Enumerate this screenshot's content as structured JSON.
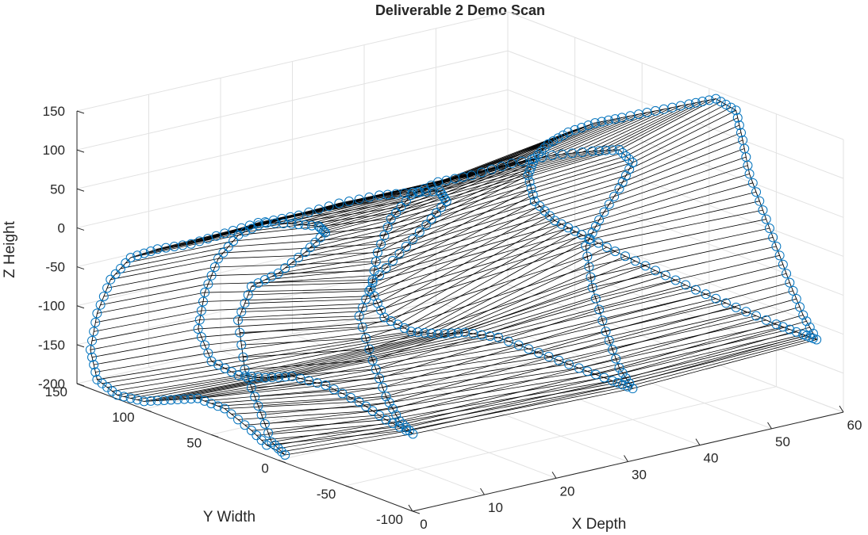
{
  "chart_data": {
    "type": "scatter3d-wireframe",
    "title": "Deliverable 2 Demo Scan",
    "xlabel": "X Depth",
    "ylabel": "Y Width",
    "zlabel": "Z Height",
    "xlim": [
      0,
      60
    ],
    "ylim": [
      -100,
      150
    ],
    "zlim": [
      -200,
      150
    ],
    "xticks": [
      "0",
      "10",
      "20",
      "30",
      "40",
      "50",
      "60"
    ],
    "yticks": [
      "-100",
      "-50",
      "0",
      "50",
      "100",
      "150"
    ],
    "zticks": [
      "-200",
      "-150",
      "-100",
      "-50",
      "0",
      "50",
      "100",
      "150"
    ],
    "grid": true,
    "marker_color": "#0072BD",
    "line_color": "#000000",
    "scans": [
      {
        "x": 0,
        "points": [
          [
            -5,
            -190
          ],
          [
            5,
            -180
          ],
          [
            15,
            -140
          ],
          [
            25,
            -100
          ],
          [
            30,
            -40
          ],
          [
            20,
            10
          ],
          [
            0,
            40
          ],
          [
            -20,
            80
          ],
          [
            -35,
            115
          ],
          [
            -30,
            120
          ],
          [
            -10,
            110
          ],
          [
            15,
            95
          ],
          [
            40,
            65
          ],
          [
            65,
            35
          ],
          [
            90,
            12
          ],
          [
            110,
            -12
          ],
          [
            125,
            -50
          ],
          [
            135,
            -100
          ],
          [
            140,
            -150
          ],
          [
            135,
            -185
          ],
          [
            120,
            -195
          ],
          [
            100,
            -190
          ],
          [
            80,
            -175
          ],
          [
            60,
            -160
          ],
          [
            40,
            -160
          ],
          [
            20,
            -175
          ],
          [
            5,
            -190
          ]
        ]
      },
      {
        "x": 15,
        "points": [
          [
            -20,
            -185
          ],
          [
            -10,
            -175
          ],
          [
            0,
            -150
          ],
          [
            10,
            -110
          ],
          [
            20,
            -60
          ],
          [
            10,
            -10
          ],
          [
            -10,
            40
          ],
          [
            -30,
            90
          ],
          [
            -45,
            130
          ],
          [
            -40,
            140
          ],
          [
            -20,
            125
          ],
          [
            5,
            105
          ],
          [
            35,
            75
          ],
          [
            65,
            40
          ],
          [
            90,
            15
          ],
          [
            110,
            -15
          ],
          [
            125,
            -55
          ],
          [
            135,
            -105
          ],
          [
            140,
            -155
          ],
          [
            130,
            -190
          ],
          [
            110,
            -195
          ],
          [
            90,
            -185
          ],
          [
            70,
            -170
          ],
          [
            45,
            -165
          ],
          [
            20,
            -170
          ],
          [
            0,
            -180
          ],
          [
            -20,
            -185
          ]
        ]
      },
      {
        "x": 40,
        "points": [
          [
            -50,
            -160
          ],
          [
            -40,
            -140
          ],
          [
            -30,
            -100
          ],
          [
            -20,
            -50
          ],
          [
            -15,
            0
          ],
          [
            -25,
            40
          ],
          [
            -40,
            90
          ],
          [
            -50,
            130
          ],
          [
            -40,
            140
          ],
          [
            -20,
            125
          ],
          [
            10,
            100
          ],
          [
            40,
            70
          ],
          [
            70,
            35
          ],
          [
            95,
            10
          ],
          [
            115,
            -20
          ],
          [
            130,
            -60
          ],
          [
            140,
            -110
          ],
          [
            145,
            -160
          ],
          [
            135,
            -190
          ],
          [
            115,
            -195
          ],
          [
            95,
            -185
          ],
          [
            75,
            -170
          ],
          [
            50,
            -160
          ],
          [
            20,
            -160
          ],
          [
            -10,
            -160
          ],
          [
            -35,
            -160
          ],
          [
            -50,
            -160
          ]
        ]
      },
      {
        "x": 60,
        "points": [
          [
            -80,
            -120
          ],
          [
            -70,
            -95
          ],
          [
            -60,
            -60
          ],
          [
            -50,
            -20
          ],
          [
            -40,
            20
          ],
          [
            -30,
            60
          ],
          [
            -25,
            100
          ],
          [
            -20,
            135
          ],
          [
            -5,
            140
          ],
          [
            15,
            120
          ],
          [
            40,
            95
          ],
          [
            65,
            70
          ],
          [
            85,
            50
          ],
          [
            105,
            25
          ],
          [
            120,
            0
          ],
          [
            130,
            -25
          ],
          [
            135,
            -50
          ],
          [
            130,
            -80
          ],
          [
            115,
            -95
          ],
          [
            95,
            -100
          ],
          [
            70,
            -105
          ],
          [
            40,
            -110
          ],
          [
            10,
            -115
          ],
          [
            -20,
            -118
          ],
          [
            -50,
            -120
          ],
          [
            -70,
            -120
          ],
          [
            -80,
            -120
          ]
        ]
      }
    ]
  }
}
